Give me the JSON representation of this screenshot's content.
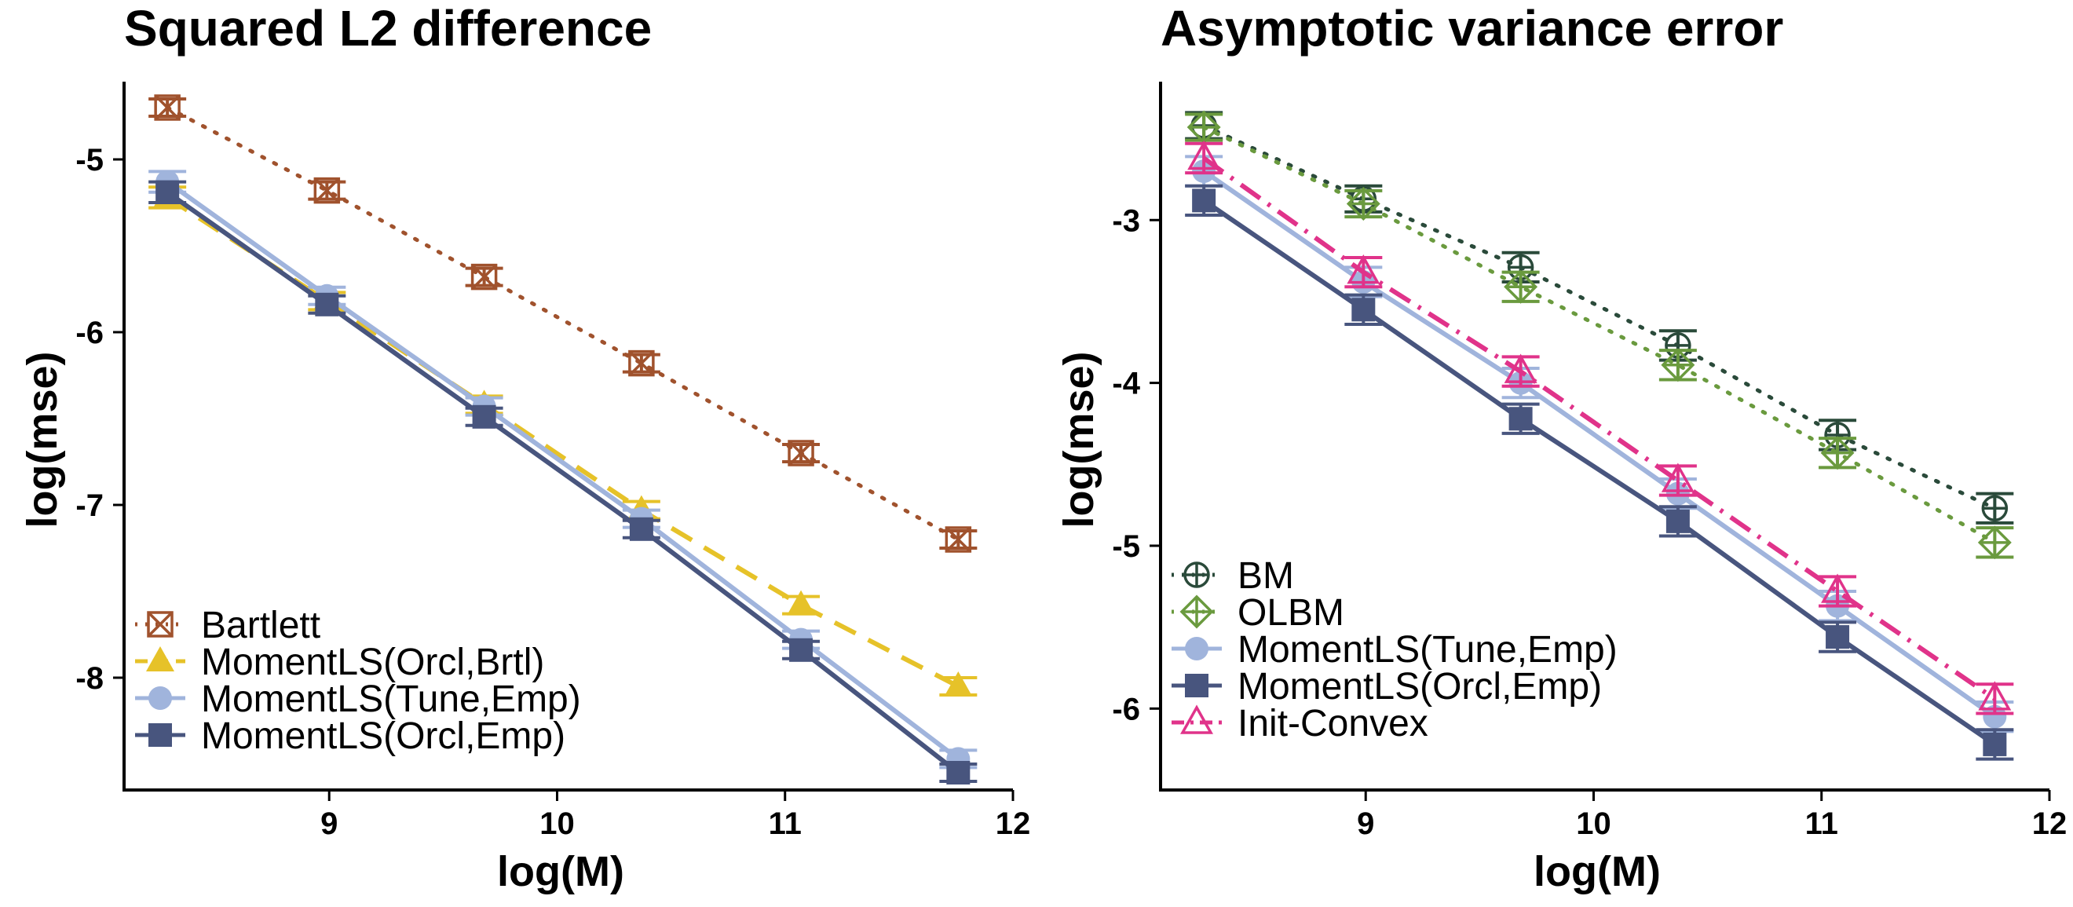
{
  "chart_data": [
    {
      "type": "line",
      "title": "Squared L2 difference",
      "xlabel": "log(M)",
      "ylabel": "log(mse)",
      "xlim": [
        8.1,
        12.0
      ],
      "ylim": [
        -8.65,
        -4.55
      ],
      "xticks": [
        "9",
        "10",
        "11",
        "12"
      ],
      "yticks": [
        "-5",
        "-6",
        "-7",
        "-8"
      ],
      "grid": false,
      "legend_position": "bottom-left",
      "x": [
        8.29,
        8.99,
        9.68,
        10.37,
        11.07,
        11.76
      ],
      "series": [
        {
          "name": "Bartlett",
          "color": "#a0522d",
          "linestyle": "dotted",
          "marker": "boxed-x",
          "values": [
            -4.7,
            -5.18,
            -5.68,
            -6.18,
            -6.7,
            -7.2
          ],
          "err": [
            0.05,
            0.05,
            0.05,
            0.05,
            0.05,
            0.05
          ]
        },
        {
          "name": "MomentLS(Orcl,Brtl)",
          "color": "#e6c229",
          "linestyle": "dashed",
          "marker": "triangle",
          "values": [
            -5.22,
            -5.82,
            -6.42,
            -7.03,
            -7.58,
            -8.05
          ],
          "err": [
            0.06,
            0.05,
            0.05,
            0.05,
            0.05,
            0.05
          ]
        },
        {
          "name": "MomentLS(Tune,Emp)",
          "color": "#a0b4dc",
          "linestyle": "solid",
          "marker": "circle",
          "values": [
            -5.13,
            -5.79,
            -6.43,
            -7.08,
            -7.78,
            -8.47
          ],
          "err": [
            0.06,
            0.05,
            0.05,
            0.05,
            0.05,
            0.05
          ]
        },
        {
          "name": "MomentLS(Orcl,Emp)",
          "color": "#48557e",
          "linestyle": "solid",
          "marker": "square",
          "values": [
            -5.19,
            -5.84,
            -6.49,
            -7.14,
            -7.84,
            -8.55
          ],
          "err": [
            0.06,
            0.05,
            0.05,
            0.05,
            0.05,
            0.05
          ]
        }
      ]
    },
    {
      "type": "line",
      "title": "Asymptotic variance error",
      "xlabel": "log(M)",
      "ylabel": "log(mse)",
      "xlim": [
        8.1,
        12.0
      ],
      "ylim": [
        -6.5,
        -2.15
      ],
      "xticks": [
        "9",
        "10",
        "11",
        "12"
      ],
      "yticks": [
        "-3",
        "-4",
        "-5",
        "-6"
      ],
      "grid": false,
      "legend_position": "bottom-left",
      "x": [
        8.29,
        8.99,
        9.68,
        10.37,
        11.07,
        11.76
      ],
      "series": [
        {
          "name": "BM",
          "color": "#2a4a3a",
          "linestyle": "dotted",
          "marker": "circle-plus",
          "values": [
            -2.42,
            -2.87,
            -3.29,
            -3.77,
            -4.32,
            -4.77
          ],
          "err": [
            0.08,
            0.08,
            0.09,
            0.09,
            0.09,
            0.09
          ]
        },
        {
          "name": "OLBM",
          "color": "#6a9a3e",
          "linestyle": "dotted",
          "marker": "diamond-plus",
          "values": [
            -2.43,
            -2.9,
            -3.41,
            -3.89,
            -4.43,
            -4.98
          ],
          "err": [
            0.08,
            0.08,
            0.09,
            0.09,
            0.09,
            0.09
          ]
        },
        {
          "name": "MomentLS(Tune,Emp)",
          "color": "#a0b4dc",
          "linestyle": "solid",
          "marker": "circle",
          "values": [
            -2.7,
            -3.38,
            -4.0,
            -4.68,
            -5.37,
            -6.05
          ],
          "err": [
            0.09,
            0.09,
            0.09,
            0.09,
            0.09,
            0.09
          ]
        },
        {
          "name": "MomentLS(Orcl,Emp)",
          "color": "#48557e",
          "linestyle": "solid",
          "marker": "square",
          "values": [
            -2.88,
            -3.55,
            -4.22,
            -4.85,
            -5.56,
            -6.22
          ],
          "err": [
            0.09,
            0.09,
            0.09,
            0.09,
            0.09,
            0.09
          ]
        },
        {
          "name": "Init-Convex",
          "color": "#e0338a",
          "linestyle": "dashdot",
          "marker": "triangle-open",
          "values": [
            -2.62,
            -3.32,
            -3.93,
            -4.6,
            -5.28,
            -5.94
          ],
          "err": [
            0.09,
            0.09,
            0.09,
            0.09,
            0.09,
            0.09
          ]
        }
      ]
    }
  ]
}
